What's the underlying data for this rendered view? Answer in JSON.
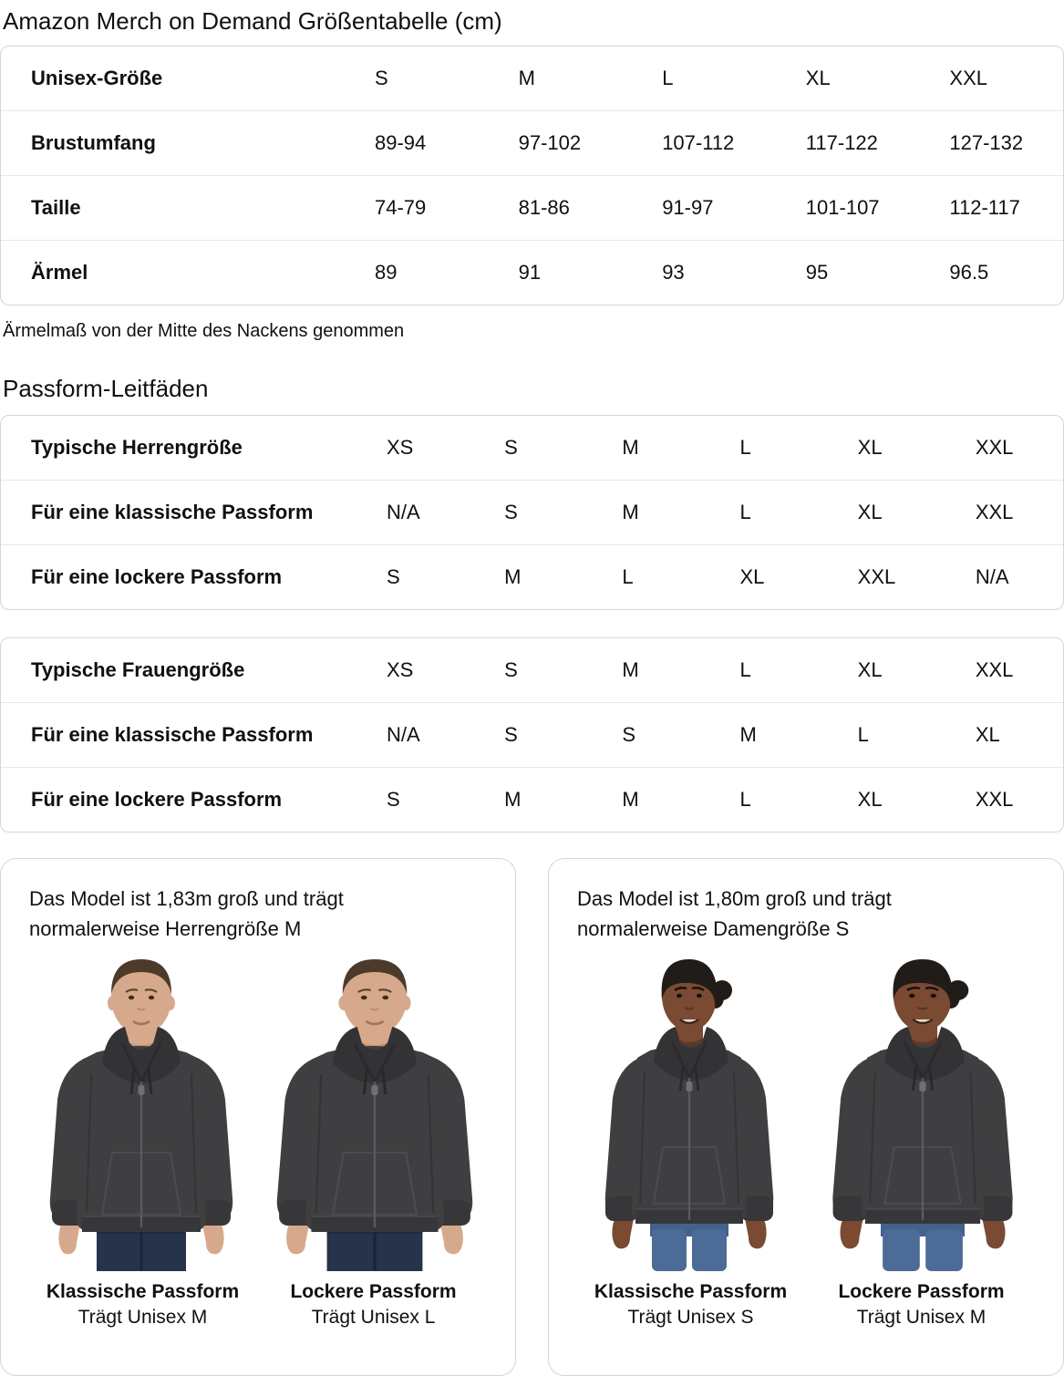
{
  "page": {
    "title": "Amazon Merch on Demand Größentabelle (cm)",
    "note": "Ärmelmaß von der Mitte des Nackens genommen",
    "section_title": "Passform-Leitfäden"
  },
  "size_table": {
    "rows": [
      {
        "label": "Unisex-Größe",
        "values": [
          "S",
          "M",
          "L",
          "XL",
          "XXL"
        ]
      },
      {
        "label": "Brustumfang",
        "values": [
          "89-94",
          "97-102",
          "107-112",
          "117-122",
          "127-132"
        ]
      },
      {
        "label": "Taille",
        "values": [
          "74-79",
          "81-86",
          "91-97",
          "101-107",
          "112-117"
        ]
      },
      {
        "label": "Ärmel",
        "values": [
          "89",
          "91",
          "93",
          "95",
          "96.5"
        ]
      }
    ]
  },
  "fit_tables": [
    {
      "rows": [
        {
          "label": "Typische Herrengröße",
          "values": [
            "XS",
            "S",
            "M",
            "L",
            "XL",
            "XXL"
          ]
        },
        {
          "label": "Für eine klassische Passform",
          "values": [
            "N/A",
            "S",
            "M",
            "L",
            "XL",
            "XXL"
          ]
        },
        {
          "label": "Für eine lockere Passform",
          "values": [
            "S",
            "M",
            "L",
            "XL",
            "XXL",
            "N/A"
          ]
        }
      ]
    },
    {
      "rows": [
        {
          "label": "Typische Frauengröße",
          "values": [
            "XS",
            "S",
            "M",
            "L",
            "XL",
            "XXL"
          ]
        },
        {
          "label": "Für eine klassische Passform",
          "values": [
            "N/A",
            "S",
            "S",
            "M",
            "L",
            "XL"
          ]
        },
        {
          "label": "Für eine lockere Passform",
          "values": [
            "S",
            "M",
            "M",
            "L",
            "XL",
            "XXL"
          ]
        }
      ]
    }
  ],
  "model_cards": [
    {
      "description": "Das Model ist 1,83m groß und trägt normalerweise Herrengröße M",
      "photos": [
        {
          "fit_title": "Klassische Passform",
          "fit_size": "Trägt Unisex M"
        },
        {
          "fit_title": "Lockere Passform",
          "fit_size": "Trägt Unisex L"
        }
      ]
    },
    {
      "description": "Das Model ist 1,80m groß und trägt normalerweise Damengröße S",
      "photos": [
        {
          "fit_title": "Klassische Passform",
          "fit_size": "Trägt Unisex S"
        },
        {
          "fit_title": "Lockere Passform",
          "fit_size": "Trägt Unisex M"
        }
      ]
    }
  ],
  "colors": {
    "text": "#0f1111",
    "table_border": "#d5d5d5",
    "row_divider": "#e7e7e7",
    "hoodie": "#3f3f41",
    "hoodie_trim": "#37373a",
    "jeans_male": "#26334a",
    "jeans_female": "#4c6b96",
    "skin_male": "#d7a98c",
    "skin_female": "#7a4a33"
  }
}
